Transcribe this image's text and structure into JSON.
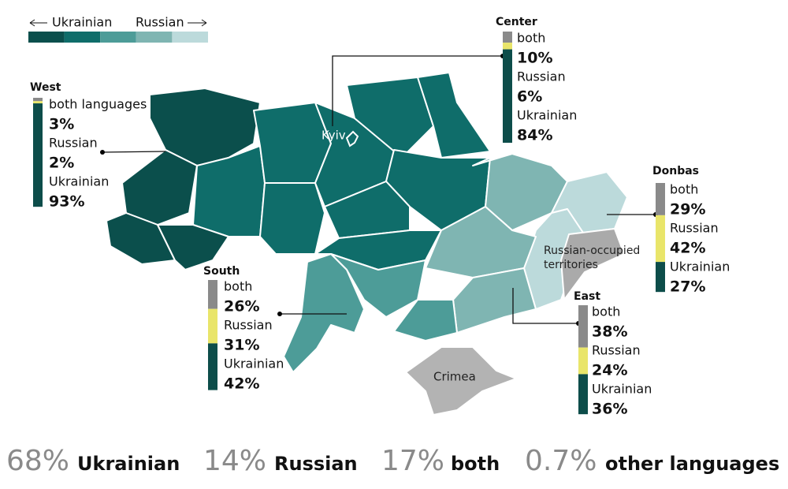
{
  "legend": {
    "left": "Ukrainian",
    "right": "Russian",
    "colors": [
      "#0b4f4c",
      "#0f6d6a",
      "#4d9c98",
      "#7fb5b2",
      "#bcdadb"
    ]
  },
  "map_labels": {
    "kyiv": "Kyiv",
    "occupied_1": "Russian-occupied",
    "occupied_2": "territories",
    "crimea": "Crimea"
  },
  "regions": [
    {
      "name": "West",
      "items": [
        {
          "label": "both languages",
          "value": 3,
          "value_label": "3%",
          "color": "#8a8a8a"
        },
        {
          "label": "Russian",
          "value": 2,
          "value_label": "2%",
          "color": "#e9e56a"
        },
        {
          "label": "Ukrainian",
          "value": 93,
          "value_label": "93%",
          "color": "#0d4d4a"
        }
      ]
    },
    {
      "name": "Center",
      "items": [
        {
          "label": "both",
          "value": 10,
          "value_label": "10%",
          "color": "#8a8a8a"
        },
        {
          "label": "Russian",
          "value": 6,
          "value_label": "6%",
          "color": "#e9e56a"
        },
        {
          "label": "Ukrainian",
          "value": 84,
          "value_label": "84%",
          "color": "#0d4d4a"
        }
      ]
    },
    {
      "name": "Donbas",
      "items": [
        {
          "label": "both",
          "value": 29,
          "value_label": "29%",
          "color": "#8a8a8a"
        },
        {
          "label": "Russian",
          "value": 42,
          "value_label": "42%",
          "color": "#e9e56a"
        },
        {
          "label": "Ukrainian",
          "value": 27,
          "value_label": "27%",
          "color": "#0d4d4a"
        }
      ]
    },
    {
      "name": "South",
      "items": [
        {
          "label": "both",
          "value": 26,
          "value_label": "26%",
          "color": "#8a8a8a"
        },
        {
          "label": "Russian",
          "value": 31,
          "value_label": "31%",
          "color": "#e9e56a"
        },
        {
          "label": "Ukrainian",
          "value": 42,
          "value_label": "42%",
          "color": "#0d4d4a"
        }
      ]
    },
    {
      "name": "East",
      "items": [
        {
          "label": "both",
          "value": 38,
          "value_label": "38%",
          "color": "#8a8a8a"
        },
        {
          "label": "Russian",
          "value": 24,
          "value_label": "24%",
          "color": "#e9e56a"
        },
        {
          "label": "Ukrainian",
          "value": 36,
          "value_label": "36%",
          "color": "#0d4d4a"
        }
      ]
    }
  ],
  "totals": [
    {
      "value": 68,
      "value_label": "68%",
      "label": "Ukrainian"
    },
    {
      "value": 14,
      "value_label": "14%",
      "label": "Russian"
    },
    {
      "value": 17,
      "value_label": "17%",
      "label": "both"
    },
    {
      "value": 0.7,
      "value_label": "0.7%",
      "label": "other languages"
    }
  ]
}
